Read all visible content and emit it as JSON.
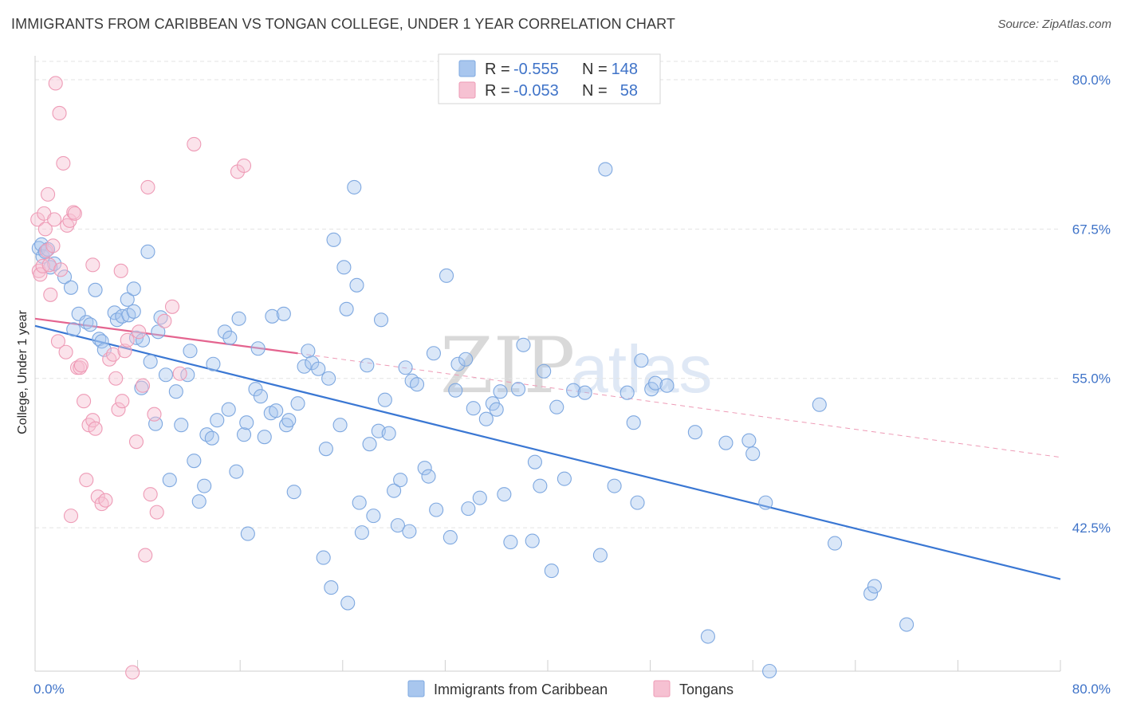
{
  "title": "IMMIGRANTS FROM CARIBBEAN VS TONGAN COLLEGE, UNDER 1 YEAR CORRELATION CHART",
  "source": "Source: ZipAtlas.com",
  "watermark": {
    "zip": "ZIP",
    "atlas": "atlas"
  },
  "legend_top": [
    {
      "r_label": "R = ",
      "r_value": "-0.555",
      "n_label": "N = ",
      "n_value": "148",
      "color": "#a8c6ee",
      "stroke": "#7ea8e0"
    },
    {
      "r_label": "R = ",
      "r_value": "-0.053",
      "n_label": "N = ",
      "n_value": "58",
      "color": "#f6c1d2",
      "stroke": "#ee9bb6"
    }
  ],
  "legend_bottom": [
    {
      "label": "Immigrants from Caribbean",
      "color": "#a8c6ee",
      "stroke": "#7ea8e0"
    },
    {
      "label": "Tongans",
      "color": "#f6c1d2",
      "stroke": "#ee9bb6"
    }
  ],
  "chart_data": {
    "type": "scatter",
    "title": "IMMIGRANTS FROM CARIBBEAN VS TONGAN COLLEGE, UNDER 1 YEAR CORRELATION CHART",
    "xlabel": "",
    "ylabel": "College, Under 1 year",
    "xlim": [
      0,
      80
    ],
    "ylim": [
      30.5,
      82
    ],
    "x_tick_labels": [
      "0.0%",
      "80.0%"
    ],
    "y_ticks": [
      42.5,
      55.0,
      67.5,
      80.0
    ],
    "y_tick_labels": [
      "42.5%",
      "55.0%",
      "67.5%",
      "80.0%"
    ],
    "grid": true,
    "legend_position": "top-center",
    "series": [
      {
        "name": "Immigrants from Caribbean",
        "color": "#7ea8e0",
        "trend": {
          "x": [
            0,
            80
          ],
          "y": [
            59.4,
            38.2
          ]
        },
        "points": [
          [
            0.3,
            65.9
          ],
          [
            0.5,
            66.2
          ],
          [
            0.6,
            65.2
          ],
          [
            0.8,
            65.6
          ],
          [
            1.0,
            65.8
          ],
          [
            1.2,
            64.3
          ],
          [
            1.5,
            64.6
          ],
          [
            2.3,
            63.5
          ],
          [
            2.8,
            62.6
          ],
          [
            3.0,
            59.1
          ],
          [
            3.4,
            60.4
          ],
          [
            4.0,
            59.7
          ],
          [
            4.3,
            59.5
          ],
          [
            4.7,
            62.4
          ],
          [
            5.0,
            58.3
          ],
          [
            5.2,
            58.1
          ],
          [
            5.4,
            57.4
          ],
          [
            6.2,
            60.5
          ],
          [
            6.4,
            59.9
          ],
          [
            6.8,
            60.2
          ],
          [
            7.2,
            61.6
          ],
          [
            7.7,
            62.5
          ],
          [
            7.3,
            60.3
          ],
          [
            7.7,
            60.6
          ],
          [
            7.9,
            58.4
          ],
          [
            8.3,
            54.2
          ],
          [
            8.4,
            58.2
          ],
          [
            8.8,
            65.6
          ],
          [
            9.0,
            56.4
          ],
          [
            9.4,
            51.2
          ],
          [
            9.6,
            58.9
          ],
          [
            9.8,
            60.1
          ],
          [
            10.2,
            55.3
          ],
          [
            10.5,
            46.5
          ],
          [
            11.0,
            53.9
          ],
          [
            11.4,
            51.1
          ],
          [
            11.9,
            55.3
          ],
          [
            12.1,
            57.3
          ],
          [
            12.4,
            48.1
          ],
          [
            12.8,
            44.7
          ],
          [
            13.2,
            46.0
          ],
          [
            13.4,
            50.3
          ],
          [
            13.8,
            50.0
          ],
          [
            13.9,
            56.2
          ],
          [
            14.2,
            51.5
          ],
          [
            14.8,
            58.9
          ],
          [
            15.2,
            58.4
          ],
          [
            15.1,
            52.4
          ],
          [
            15.7,
            47.2
          ],
          [
            15.9,
            60.0
          ],
          [
            16.3,
            50.3
          ],
          [
            16.5,
            51.3
          ],
          [
            16.6,
            42.0
          ],
          [
            17.2,
            54.1
          ],
          [
            17.4,
            57.5
          ],
          [
            17.6,
            53.5
          ],
          [
            17.9,
            50.1
          ],
          [
            18.4,
            52.1
          ],
          [
            18.5,
            60.2
          ],
          [
            18.8,
            52.3
          ],
          [
            19.4,
            60.4
          ],
          [
            19.6,
            51.1
          ],
          [
            19.8,
            51.5
          ],
          [
            20.2,
            45.5
          ],
          [
            20.5,
            52.9
          ],
          [
            21.0,
            56.0
          ],
          [
            21.3,
            57.3
          ],
          [
            21.6,
            56.3
          ],
          [
            22.1,
            55.8
          ],
          [
            22.5,
            40.0
          ],
          [
            22.7,
            49.1
          ],
          [
            22.9,
            55.0
          ],
          [
            23.1,
            37.5
          ],
          [
            23.3,
            66.6
          ],
          [
            23.8,
            51.1
          ],
          [
            24.1,
            64.3
          ],
          [
            24.3,
            60.8
          ],
          [
            24.4,
            36.2
          ],
          [
            24.9,
            71.0
          ],
          [
            25.1,
            62.8
          ],
          [
            25.3,
            44.6
          ],
          [
            25.5,
            42.1
          ],
          [
            25.9,
            56.1
          ],
          [
            26.1,
            49.5
          ],
          [
            26.4,
            43.5
          ],
          [
            26.8,
            50.6
          ],
          [
            27.0,
            59.9
          ],
          [
            27.3,
            53.2
          ],
          [
            27.6,
            50.4
          ],
          [
            28.0,
            45.6
          ],
          [
            28.3,
            42.7
          ],
          [
            28.5,
            46.5
          ],
          [
            28.9,
            55.9
          ],
          [
            29.2,
            42.2
          ],
          [
            29.4,
            54.8
          ],
          [
            29.8,
            54.5
          ],
          [
            30.4,
            47.5
          ],
          [
            30.7,
            46.8
          ],
          [
            31.1,
            57.1
          ],
          [
            31.3,
            44.0
          ],
          [
            32.1,
            63.6
          ],
          [
            32.4,
            41.7
          ],
          [
            32.8,
            54.0
          ],
          [
            33.0,
            56.2
          ],
          [
            33.6,
            56.6
          ],
          [
            33.8,
            44.1
          ],
          [
            34.2,
            52.5
          ],
          [
            34.7,
            45.0
          ],
          [
            35.2,
            51.6
          ],
          [
            35.7,
            52.9
          ],
          [
            36.0,
            52.4
          ],
          [
            36.3,
            53.9
          ],
          [
            36.6,
            45.3
          ],
          [
            37.1,
            41.3
          ],
          [
            37.7,
            54.1
          ],
          [
            38.1,
            57.8
          ],
          [
            38.8,
            41.4
          ],
          [
            39.0,
            48.0
          ],
          [
            39.4,
            46.0
          ],
          [
            39.7,
            55.6
          ],
          [
            40.3,
            38.9
          ],
          [
            40.7,
            52.6
          ],
          [
            41.3,
            46.6
          ],
          [
            42.0,
            54.0
          ],
          [
            42.9,
            53.8
          ],
          [
            44.1,
            40.2
          ],
          [
            44.5,
            72.5
          ],
          [
            45.2,
            46.0
          ],
          [
            46.2,
            53.8
          ],
          [
            46.7,
            51.3
          ],
          [
            47.0,
            44.6
          ],
          [
            47.3,
            56.5
          ],
          [
            48.1,
            54.1
          ],
          [
            48.4,
            54.6
          ],
          [
            49.3,
            54.4
          ],
          [
            51.5,
            50.5
          ],
          [
            52.5,
            33.4
          ],
          [
            53.9,
            49.6
          ],
          [
            55.7,
            49.8
          ],
          [
            56.0,
            48.7
          ],
          [
            57.0,
            44.6
          ],
          [
            57.3,
            30.5
          ],
          [
            61.2,
            52.8
          ],
          [
            62.4,
            41.2
          ],
          [
            65.2,
            37.0
          ],
          [
            65.5,
            37.6
          ],
          [
            68.0,
            34.4
          ]
        ]
      },
      {
        "name": "Tongans",
        "color": "#ee9bb6",
        "trend": {
          "x": [
            0,
            20.5
          ],
          "y": [
            60.0,
            57.1
          ]
        },
        "trend_dashed": {
          "x": [
            20.5,
            80
          ],
          "y": [
            57.1,
            48.4
          ]
        },
        "points": [
          [
            0.2,
            68.3
          ],
          [
            0.3,
            64.0
          ],
          [
            0.4,
            63.7
          ],
          [
            0.6,
            64.4
          ],
          [
            0.7,
            68.8
          ],
          [
            0.8,
            67.5
          ],
          [
            0.9,
            65.7
          ],
          [
            1.0,
            70.4
          ],
          [
            1.1,
            64.5
          ],
          [
            1.2,
            62.0
          ],
          [
            1.4,
            66.1
          ],
          [
            1.5,
            68.3
          ],
          [
            1.6,
            79.7
          ],
          [
            1.9,
            77.2
          ],
          [
            2.0,
            64.1
          ],
          [
            2.2,
            73.0
          ],
          [
            2.5,
            67.8
          ],
          [
            2.7,
            68.2
          ],
          [
            2.8,
            43.5
          ],
          [
            3.0,
            68.9
          ],
          [
            3.1,
            68.8
          ],
          [
            3.3,
            55.9
          ],
          [
            3.5,
            55.9
          ],
          [
            3.8,
            53.1
          ],
          [
            4.0,
            46.5
          ],
          [
            4.2,
            51.1
          ],
          [
            4.5,
            51.5
          ],
          [
            4.7,
            50.8
          ],
          [
            4.9,
            45.1
          ],
          [
            5.2,
            44.5
          ],
          [
            5.5,
            44.8
          ],
          [
            5.8,
            56.6
          ],
          [
            6.1,
            57.0
          ],
          [
            6.3,
            55.0
          ],
          [
            6.5,
            52.4
          ],
          [
            6.8,
            53.1
          ],
          [
            7.0,
            57.3
          ],
          [
            7.2,
            58.2
          ],
          [
            7.6,
            30.4
          ],
          [
            7.9,
            49.7
          ],
          [
            8.1,
            58.9
          ],
          [
            8.4,
            54.4
          ],
          [
            8.6,
            40.2
          ],
          [
            8.8,
            71.0
          ],
          [
            9.0,
            45.3
          ],
          [
            9.3,
            52.0
          ],
          [
            9.5,
            43.8
          ],
          [
            10.1,
            59.8
          ],
          [
            10.7,
            61.0
          ],
          [
            11.3,
            55.4
          ],
          [
            12.4,
            74.6
          ],
          [
            15.8,
            72.3
          ],
          [
            16.3,
            72.8
          ],
          [
            4.5,
            64.5
          ],
          [
            1.8,
            58.1
          ],
          [
            2.4,
            57.2
          ],
          [
            3.6,
            56.1
          ],
          [
            6.7,
            64.0
          ]
        ]
      }
    ]
  }
}
